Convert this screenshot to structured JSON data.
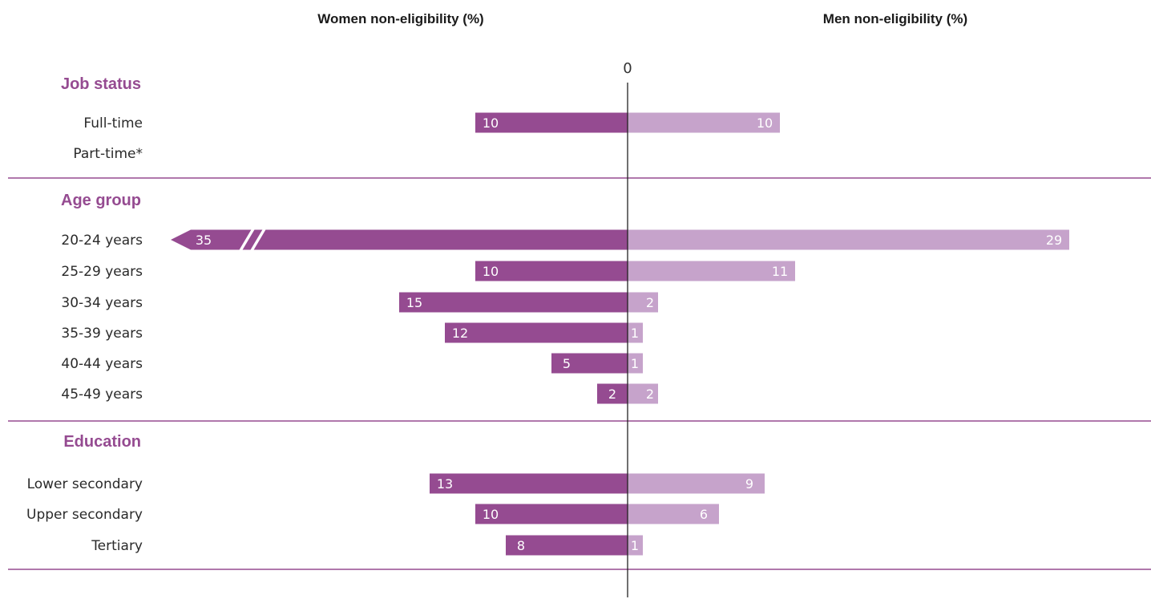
{
  "chart_data": {
    "type": "bar",
    "orientation": "horizontal-diverging",
    "left_header": "Women non-eligibility (%)",
    "right_header": "Men non-eligibility (%)",
    "axis_zero_label": "0",
    "colors": {
      "women": "#954b91",
      "men": "#c6a3cb",
      "group_title": "#954b91",
      "separator": "#954b91",
      "axis": "#222222"
    },
    "broken_bar_note": "Women 20-24 years bar is truncated (axis break)",
    "groups": [
      {
        "title": "Job status",
        "rows": [
          {
            "label": "Full-time",
            "women": 10,
            "women_label": "10",
            "men": 10,
            "men_label": "10"
          },
          {
            "label": "Part-time*",
            "women": null,
            "women_label": null,
            "men": null,
            "men_label": null
          }
        ]
      },
      {
        "title": "Age group",
        "rows": [
          {
            "label": "20-24 years",
            "women": 35,
            "women_label": "35",
            "men": 29,
            "men_label": "29",
            "women_truncated": true
          },
          {
            "label": "25-29 years",
            "women": 10,
            "women_label": "10",
            "men": 11,
            "men_label": "11"
          },
          {
            "label": "30-34 years",
            "women": 15,
            "women_label": "15",
            "men": 2,
            "men_label": "2"
          },
          {
            "label": "35-39 years",
            "women": 12,
            "women_label": "12",
            "men": 1,
            "men_label": "1"
          },
          {
            "label": "40-44 years",
            "women": 5,
            "women_label": "5",
            "men": 1,
            "men_label": "1"
          },
          {
            "label": "45-49 years",
            "women": 2,
            "women_label": "2",
            "men": 2,
            "men_label": "2"
          }
        ]
      },
      {
        "title": "Education",
        "rows": [
          {
            "label": "Lower secondary",
            "women": 13,
            "women_label": "13",
            "men": 9,
            "men_label": "9"
          },
          {
            "label": "Upper secondary",
            "women": 10,
            "women_label": "10",
            "men": 6,
            "men_label": "6"
          },
          {
            "label": "Tertiary",
            "women": 8,
            "women_label": "8",
            "men": 1,
            "men_label": "1"
          }
        ]
      }
    ]
  }
}
